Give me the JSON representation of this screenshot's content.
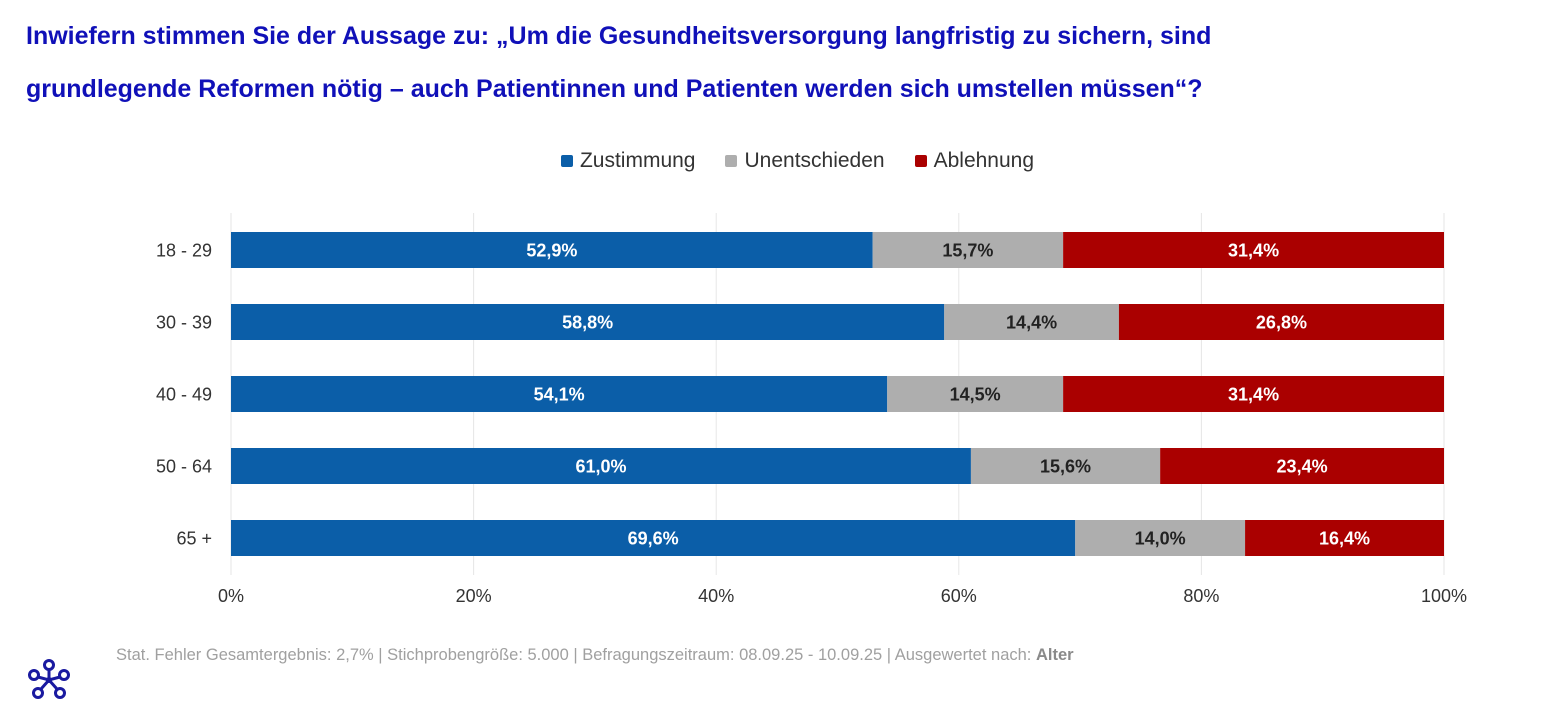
{
  "title": {
    "line1": "Inwiefern stimmen Sie der Aussage zu: „Um die Gesundheitsversorgung langfristig zu sichern, sind",
    "line2": "grundlegende Reformen nötig – auch Patientinnen und Patienten werden sich umstellen müssen“?"
  },
  "footer": {
    "text": "Stat. Fehler Gesamtergebnis: 2,7% | Stichprobengröße: 5.000 | Befragungszeitraum: 08.09.25 - 10.09.25 | Ausgewertet nach: ",
    "bold": "Alter"
  },
  "colors": {
    "title": "#1010b8",
    "zustimmung": "#0b5ea8",
    "unentschieden": "#aeaeae",
    "ablehnung": "#aa0000",
    "logo": "#1a1aa0"
  },
  "logo_icon": "network-logo-icon",
  "chart_data": {
    "type": "bar",
    "orientation": "horizontal",
    "stacked": true,
    "percent": true,
    "categories": [
      "18 - 29",
      "30 - 39",
      "40 - 49",
      "50 - 64",
      "65 +"
    ],
    "series": [
      {
        "name": "Zustimmung",
        "color": "#0b5ea8",
        "label_color": "#ffffff",
        "values": [
          52.9,
          58.8,
          54.1,
          61.0,
          69.6
        ],
        "labels": [
          "52,9%",
          "58,8%",
          "54,1%",
          "61,0%",
          "69,6%"
        ]
      },
      {
        "name": "Unentschieden",
        "color": "#aeaeae",
        "label_color": "#222222",
        "values": [
          15.7,
          14.4,
          14.5,
          15.6,
          14.0
        ],
        "labels": [
          "15,7%",
          "14,4%",
          "14,5%",
          "15,6%",
          "14,0%"
        ]
      },
      {
        "name": "Ablehnung",
        "color": "#aa0000",
        "label_color": "#ffffff",
        "values": [
          31.4,
          26.8,
          31.4,
          23.4,
          16.4
        ],
        "labels": [
          "31,4%",
          "26,8%",
          "31,4%",
          "23,4%",
          "16,4%"
        ]
      }
    ],
    "xlim": [
      0,
      100
    ],
    "xticks": [
      0,
      20,
      40,
      60,
      80,
      100
    ],
    "xtick_labels": [
      "0%",
      "20%",
      "40%",
      "60%",
      "80%",
      "100%"
    ],
    "grid": true,
    "legend_position": "top-center"
  }
}
